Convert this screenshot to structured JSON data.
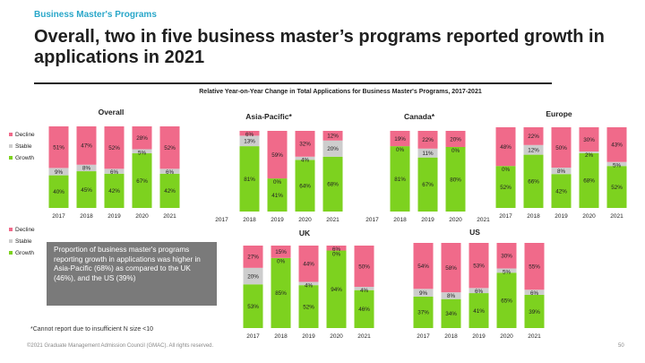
{
  "header": {
    "kicker": "Business Master's Programs",
    "title": "Overall, two in five business master’s programs reported growth in applications in 2021"
  },
  "colors": {
    "decline": "#f06a8a",
    "stable": "#cdcdcd",
    "growth": "#7dd21f",
    "accent": "#2aa7c9",
    "callout_bg": "#7a7a7a"
  },
  "callout": "Proportion of business master's programs reporting growth in applications was higher in Asia-Pacific (68%) as compared to the UK (46%), and the US (39%)",
  "footnote": "*Cannot report due to insufficient N size <10",
  "copyright": "©2021 Graduate Management Admission Council (GMAC). All rights reserved.",
  "page_number": "50",
  "chart_data": {
    "type": "bar",
    "stacked": true,
    "normalized_percent": true,
    "title": "Relative Year-on-Year Change in Total Applications for Business Master's Programs, 2017-2021",
    "categories": [
      "2017",
      "2018",
      "2019",
      "2020",
      "2021"
    ],
    "legend": {
      "labels": [
        "Decline",
        "Stable",
        "Growth"
      ],
      "placement": "left"
    },
    "panels": [
      {
        "name": "Overall",
        "decline": [
          51,
          47,
          52,
          28,
          52
        ],
        "stable": [
          9,
          8,
          6,
          5,
          6
        ],
        "growth": [
          40,
          45,
          42,
          67,
          42
        ]
      },
      {
        "name": "Asia-Pacific*",
        "decline": [
          null,
          6,
          59,
          32,
          12
        ],
        "stable": [
          null,
          13,
          0,
          4,
          20
        ],
        "growth": [
          null,
          81,
          41,
          64,
          68
        ]
      },
      {
        "name": "Canada*",
        "decline": [
          null,
          19,
          22,
          20,
          null
        ],
        "stable": [
          null,
          0,
          11,
          0,
          null
        ],
        "growth": [
          null,
          81,
          67,
          80,
          null
        ]
      },
      {
        "name": "Europe",
        "decline": [
          48,
          22,
          50,
          30,
          43
        ],
        "stable": [
          0,
          12,
          8,
          2,
          5
        ],
        "growth": [
          52,
          66,
          42,
          68,
          52
        ]
      },
      {
        "name": "UK",
        "decline": [
          27,
          15,
          44,
          6,
          50
        ],
        "stable": [
          20,
          0,
          4,
          0,
          4
        ],
        "growth": [
          53,
          85,
          52,
          94,
          46
        ]
      },
      {
        "name": "US",
        "decline": [
          54,
          58,
          53,
          30,
          55
        ],
        "stable": [
          9,
          8,
          6,
          5,
          6
        ],
        "growth": [
          37,
          34,
          41,
          65,
          39
        ]
      }
    ]
  }
}
